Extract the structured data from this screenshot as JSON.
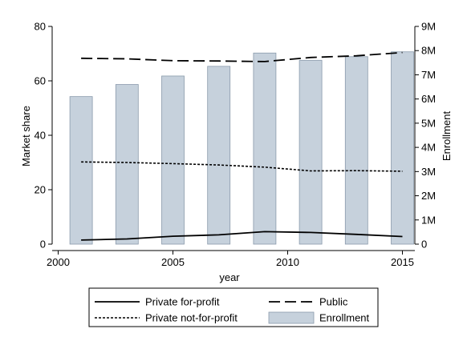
{
  "chart_data": {
    "type": "bar+line",
    "title": "",
    "xlabel": "year",
    "ylabel_left": "Market share",
    "ylabel_right": "Enrollment",
    "xlim": [
      2000,
      2015
    ],
    "ylim_left": [
      0,
      80
    ],
    "ylim_right": [
      0,
      9000000
    ],
    "x_ticks": [
      2000,
      2005,
      2010,
      2015
    ],
    "x_tick_labels": [
      "2000",
      "2005",
      "2010",
      "2015"
    ],
    "y_left_ticks": [
      0,
      20,
      40,
      60,
      80
    ],
    "y_left_tick_labels": [
      "0",
      "20",
      "40",
      "60",
      "80"
    ],
    "y_right_ticks": [
      0,
      1000000,
      2000000,
      3000000,
      4000000,
      5000000,
      6000000,
      7000000,
      8000000,
      9000000
    ],
    "y_right_tick_labels": [
      "0",
      "1M",
      "2M",
      "3M",
      "4M",
      "5M",
      "6M",
      "7M",
      "8M",
      "9M"
    ],
    "grid": false,
    "legend_position": "bottom",
    "bars": {
      "name": "Enrollment",
      "axis": "right",
      "color": "#c6d1dc",
      "x": [
        2001,
        2003,
        2005,
        2007,
        2009,
        2011,
        2013,
        2015
      ],
      "values": [
        6100000,
        6600000,
        6950000,
        7350000,
        7900000,
        7600000,
        7750000,
        7950000
      ]
    },
    "series": [
      {
        "name": "Private for-profit",
        "axis": "left",
        "style": "solid",
        "x": [
          2001,
          2003,
          2005,
          2007,
          2009,
          2011,
          2013,
          2015
        ],
        "values": [
          1.5,
          1.9,
          2.9,
          3.4,
          4.6,
          4.3,
          3.6,
          2.8
        ]
      },
      {
        "name": "Private not-for-profit",
        "axis": "left",
        "style": "dotted",
        "x": [
          2001,
          2003,
          2005,
          2007,
          2009,
          2011,
          2013,
          2015
        ],
        "values": [
          30.2,
          30.0,
          29.6,
          29.1,
          28.3,
          26.9,
          27.0,
          26.8
        ]
      },
      {
        "name": "Public",
        "axis": "left",
        "style": "dashed",
        "x": [
          2001,
          2003,
          2005,
          2007,
          2009,
          2011,
          2013,
          2015
        ],
        "values": [
          68.3,
          68.1,
          67.4,
          67.3,
          67.1,
          68.6,
          69.2,
          70.4
        ]
      }
    ],
    "legend": [
      {
        "label": "Private for-profit",
        "kind": "solid"
      },
      {
        "label": "Public",
        "kind": "dashed"
      },
      {
        "label": "Private not-for-profit",
        "kind": "dotted"
      },
      {
        "label": "Enrollment",
        "kind": "bar"
      }
    ]
  }
}
